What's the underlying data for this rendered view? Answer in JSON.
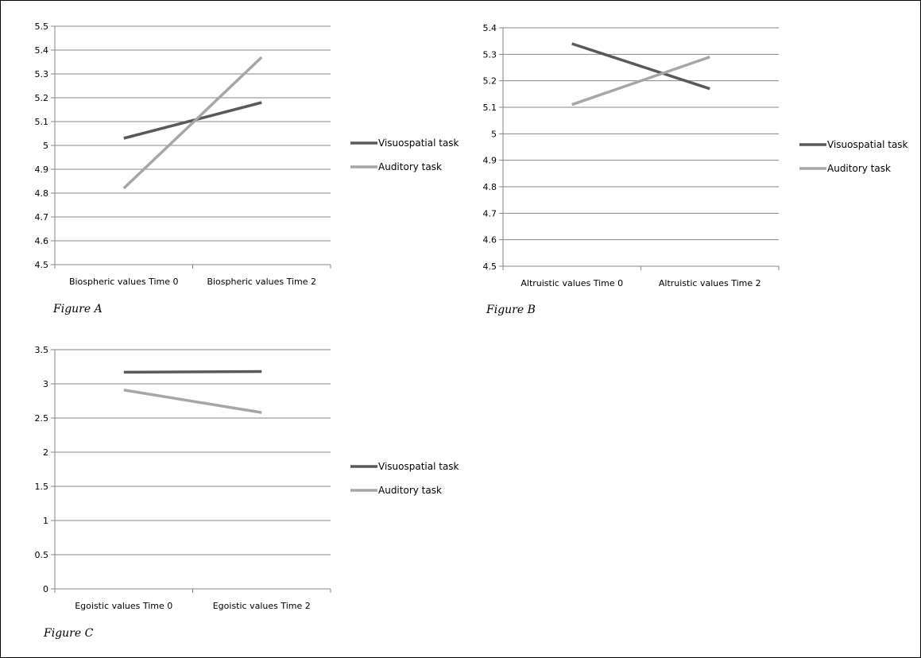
{
  "chart_data": [
    {
      "type": "line",
      "categories": [
        "Biospheric values Time 0",
        "Biospheric values Time 2"
      ],
      "series": [
        {
          "name": "Visuospatial task",
          "values": [
            5.03,
            5.18
          ],
          "color": "#595959"
        },
        {
          "name": "Auditory task",
          "values": [
            4.82,
            5.37
          ],
          "color": "#a6a6a6"
        }
      ],
      "ylim": [
        4.5,
        5.5
      ],
      "yticks": [
        "4.5",
        "4.6",
        "4.7",
        "4.8",
        "4.9",
        "5",
        "5.1",
        "5.2",
        "5.3",
        "5.4",
        "5.5"
      ],
      "grid": true,
      "legend": "right",
      "caption": "Figure A"
    },
    {
      "type": "line",
      "categories": [
        "Altruistic values Time 0",
        "Altruistic values Time 2"
      ],
      "series": [
        {
          "name": "Visuospatial task",
          "values": [
            5.34,
            5.17
          ],
          "color": "#595959"
        },
        {
          "name": "Auditory task",
          "values": [
            5.11,
            5.29
          ],
          "color": "#a6a6a6"
        }
      ],
      "ylim": [
        4.5,
        5.4
      ],
      "yticks": [
        "4.5",
        "4.6",
        "4.7",
        "4.8",
        "4.9",
        "5",
        "5.1",
        "5.2",
        "5.3",
        "5.4"
      ],
      "grid": true,
      "legend": "right",
      "caption": "Figure B"
    },
    {
      "type": "line",
      "categories": [
        "Egoistic values Time 0",
        "Egoistic values Time 2"
      ],
      "series": [
        {
          "name": "Visuospatial task",
          "values": [
            3.17,
            3.18
          ],
          "color": "#595959"
        },
        {
          "name": "Auditory task",
          "values": [
            2.91,
            2.58
          ],
          "color": "#a6a6a6"
        }
      ],
      "ylim": [
        0,
        3.5
      ],
      "yticks": [
        "0",
        "0.5",
        "1",
        "1.5",
        "2",
        "2.5",
        "3",
        "3.5"
      ],
      "grid": true,
      "legend": "right",
      "caption": "Figure C"
    }
  ]
}
